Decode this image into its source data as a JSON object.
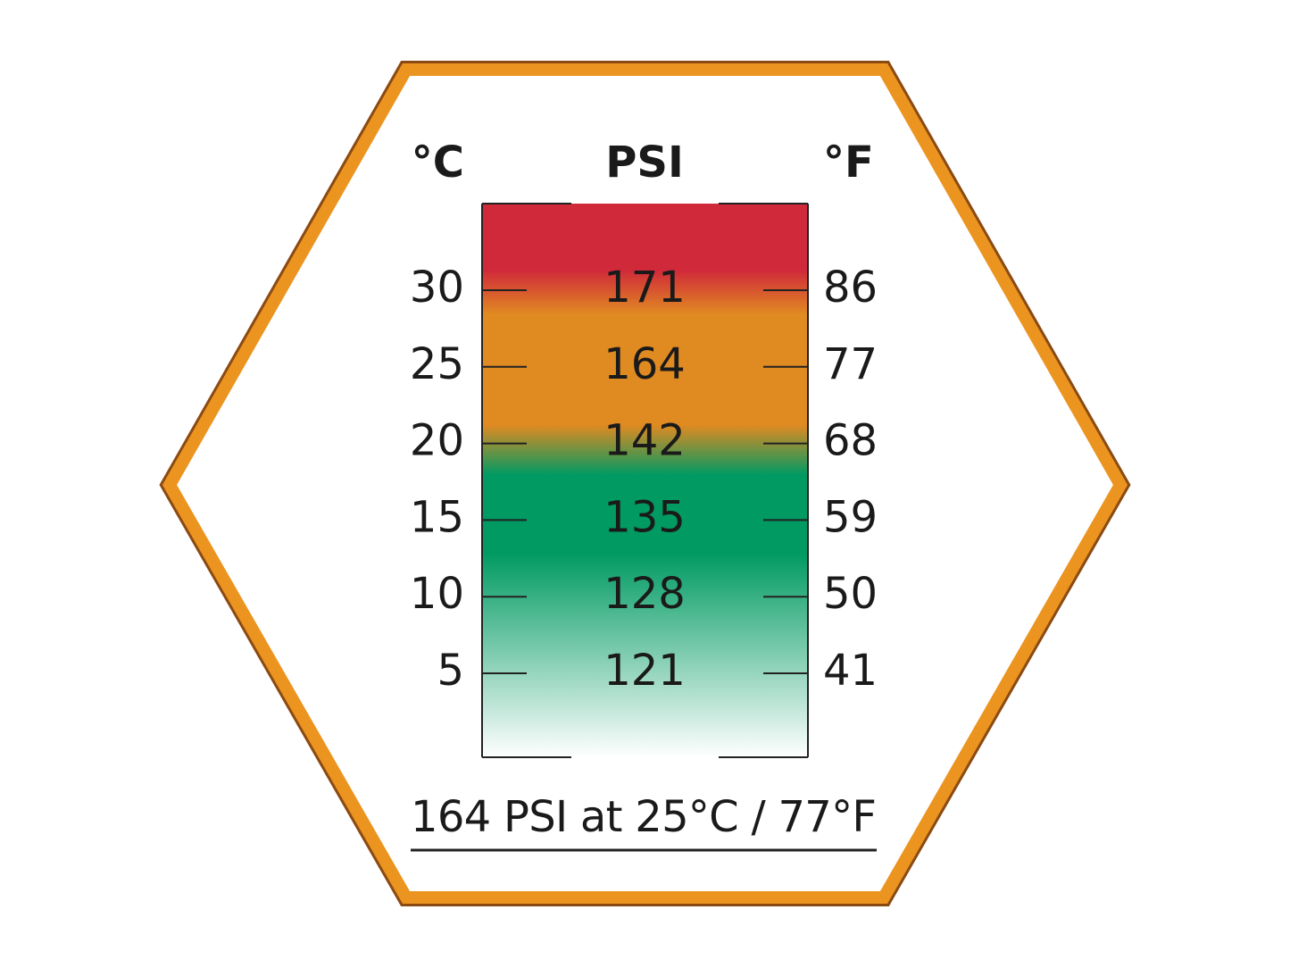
{
  "header": {
    "celsius": "°C",
    "psi": "PSI",
    "fahrenheit": "°F"
  },
  "rows": [
    {
      "celsius": 30,
      "psi": 171,
      "fahrenheit": 86
    },
    {
      "celsius": 25,
      "psi": 164,
      "fahrenheit": 77
    },
    {
      "celsius": 20,
      "psi": 142,
      "fahrenheit": 68
    },
    {
      "celsius": 15,
      "psi": 135,
      "fahrenheit": 59
    },
    {
      "celsius": 10,
      "psi": 128,
      "fahrenheit": 50
    },
    {
      "celsius": 5,
      "psi": 121,
      "fahrenheit": 41
    }
  ],
  "footer": "164 PSI at 25°C / 77°F"
}
